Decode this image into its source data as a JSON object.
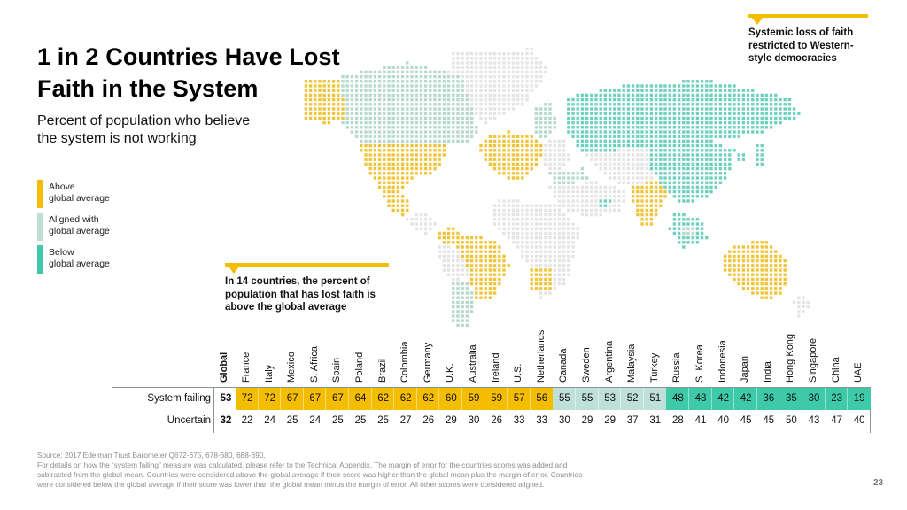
{
  "title": "1 in 2 Countries Have Lost Faith in the System",
  "title_lines": [
    "1 in 2 Countries Have Lost",
    "Faith in the System"
  ],
  "subtitle_lines": [
    "Percent of population who believe",
    "the system is not working"
  ],
  "colors": {
    "above": "#f5bd00",
    "aligned": "#bfe0d9",
    "below": "#3ecaa8",
    "map_above": "#f0c43a",
    "map_aligned": "#b6d8cf",
    "map_below": "#6fd0bd",
    "map_nodata": "#e4e4e4"
  },
  "legend": [
    {
      "key": "above",
      "line1": "Above",
      "line2": "global average"
    },
    {
      "key": "aligned",
      "line1": "Aligned with",
      "line2": "global average"
    },
    {
      "key": "below",
      "line1": "Below",
      "line2": "global average"
    }
  ],
  "callouts": {
    "western": {
      "lines": [
        "Systemic loss of faith",
        "restricted to Western-",
        "style democracies"
      ]
    },
    "fourteen": {
      "lines": [
        "In 14 countries, the percent of",
        "population that has lost faith is",
        "above the global average"
      ]
    }
  },
  "chart_data": {
    "type": "table",
    "title": "Percent of population who believe the system is not working",
    "row_labels": [
      "System failing",
      "Uncertain"
    ],
    "global": {
      "label": "Global",
      "system_failing": 53,
      "uncertain": 32
    },
    "countries": [
      {
        "name": "France",
        "system_failing": 72,
        "uncertain": 22,
        "category": "above"
      },
      {
        "name": "Italy",
        "system_failing": 72,
        "uncertain": 24,
        "category": "above"
      },
      {
        "name": "Mexico",
        "system_failing": 67,
        "uncertain": 25,
        "category": "above"
      },
      {
        "name": "S. Africa",
        "system_failing": 67,
        "uncertain": 24,
        "category": "above"
      },
      {
        "name": "Spain",
        "system_failing": 67,
        "uncertain": 25,
        "category": "above"
      },
      {
        "name": "Poland",
        "system_failing": 64,
        "uncertain": 25,
        "category": "above"
      },
      {
        "name": "Brazil",
        "system_failing": 62,
        "uncertain": 25,
        "category": "above"
      },
      {
        "name": "Colombia",
        "system_failing": 62,
        "uncertain": 27,
        "category": "above"
      },
      {
        "name": "Germany",
        "system_failing": 62,
        "uncertain": 26,
        "category": "above"
      },
      {
        "name": "U.K.",
        "system_failing": 60,
        "uncertain": 29,
        "category": "above"
      },
      {
        "name": "Australia",
        "system_failing": 59,
        "uncertain": 30,
        "category": "above"
      },
      {
        "name": "Ireland",
        "system_failing": 59,
        "uncertain": 26,
        "category": "above"
      },
      {
        "name": "U.S.",
        "system_failing": 57,
        "uncertain": 33,
        "category": "above"
      },
      {
        "name": "Netherlands",
        "system_failing": 56,
        "uncertain": 33,
        "category": "above"
      },
      {
        "name": "Canada",
        "system_failing": 55,
        "uncertain": 30,
        "category": "aligned"
      },
      {
        "name": "Sweden",
        "system_failing": 55,
        "uncertain": 29,
        "category": "aligned"
      },
      {
        "name": "Argentina",
        "system_failing": 53,
        "uncertain": 29,
        "category": "aligned"
      },
      {
        "name": "Malaysia",
        "system_failing": 52,
        "uncertain": 37,
        "category": "aligned"
      },
      {
        "name": "Turkey",
        "system_failing": 51,
        "uncertain": 31,
        "category": "aligned"
      },
      {
        "name": "Russia",
        "system_failing": 48,
        "uncertain": 28,
        "category": "below"
      },
      {
        "name": "S. Korea",
        "system_failing": 48,
        "uncertain": 41,
        "category": "below"
      },
      {
        "name": "Indonesia",
        "system_failing": 42,
        "uncertain": 40,
        "category": "below"
      },
      {
        "name": "Japan",
        "system_failing": 42,
        "uncertain": 45,
        "category": "below"
      },
      {
        "name": "India",
        "system_failing": 36,
        "uncertain": 45,
        "category": "below"
      },
      {
        "name": "Hong Kong",
        "system_failing": 35,
        "uncertain": 50,
        "category": "below"
      },
      {
        "name": "Singapore",
        "system_failing": 30,
        "uncertain": 43,
        "category": "below"
      },
      {
        "name": "China",
        "system_failing": 23,
        "uncertain": 47,
        "category": "below"
      },
      {
        "name": "UAE",
        "system_failing": 19,
        "uncertain": 40,
        "category": "below"
      }
    ]
  },
  "footnote_lines": [
    "Source: 2017 Edelman Trust Barometer Q672-675, 678-680, 688-690.",
    "For details on how the “system failing” measure was calculated, please refer to the Technical Appendix. The margin of error for the countries scores was added and",
    "subtracted from the global mean. Countries were considered above the global average if their score was higher than the global mean plus the margin of error. Countries",
    "were considered below the global average if their score was lower than the global mean minus the margin of error. All other scores were considered aligned."
  ],
  "page_number": "23"
}
